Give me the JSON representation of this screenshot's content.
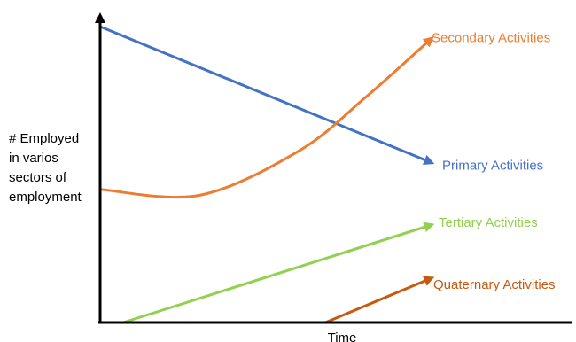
{
  "chart_data": {
    "type": "line",
    "title": "",
    "xlabel": "Time",
    "ylabel": [
      "# Employed",
      "in varios",
      "sectors of",
      "employment"
    ],
    "xlim": [
      0,
      100
    ],
    "ylim": [
      0,
      100
    ],
    "grid": false,
    "legend": "inline labels at line ends",
    "series": [
      {
        "name": "Primary Activities",
        "color": "#4472c4",
        "shape": "straight",
        "x": [
          0,
          100
        ],
        "y": [
          100,
          54
        ]
      },
      {
        "name": "Secondary Activities",
        "color": "#ed7d31",
        "shape": "curve",
        "x": [
          0,
          30,
          60,
          80,
          100
        ],
        "y": [
          45,
          43,
          58,
          76,
          96
        ]
      },
      {
        "name": "Tertiary Activities",
        "color": "#92d050",
        "shape": "straight",
        "x": [
          7,
          100
        ],
        "y": [
          0,
          33
        ]
      },
      {
        "name": "Quaternary Activities",
        "color": "#c55a11",
        "shape": "straight",
        "x": [
          68,
          100
        ],
        "y": [
          0,
          15
        ]
      }
    ]
  }
}
